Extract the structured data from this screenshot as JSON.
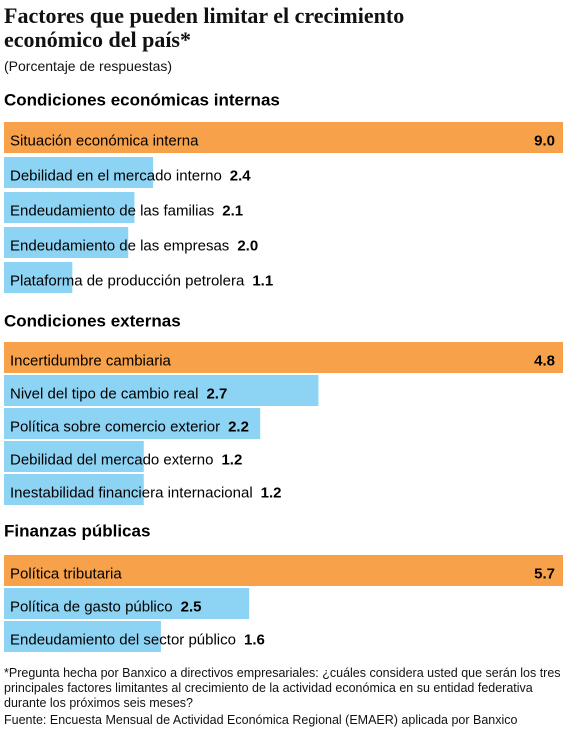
{
  "chart_data": {
    "type": "bar",
    "title": "Factores que pueden limitar el crecimiento económico del país*",
    "subtitle": "(Porcentaje de respuestas)",
    "groups": [
      {
        "name": "Condiciones económicas internas",
        "categories": [
          "Situación económica interna",
          "Debilidad en el mercado interno",
          "Endeudamiento de las familias",
          "Endeudamiento de las empresas",
          "Plataforma de producción petrolera"
        ],
        "values": [
          9.0,
          2.4,
          2.1,
          2.0,
          1.1
        ],
        "value_labels": [
          "9.0",
          "2.4",
          "2.1",
          "2.0",
          "1.1"
        ],
        "colors": [
          "#f7a14a",
          "#8dd3f3",
          "#8dd3f3",
          "#8dd3f3",
          "#8dd3f3"
        ]
      },
      {
        "name": "Condiciones externas",
        "categories": [
          "Incertidumbre cambiaria",
          "Nivel del tipo de cambio real",
          "Política sobre comercio exterior",
          "Debilidad del mercado externo",
          "Inestabilidad financiera internacional"
        ],
        "values": [
          4.8,
          2.7,
          2.2,
          1.2,
          1.2
        ],
        "value_labels": [
          "4.8",
          "2.7",
          "2.2",
          "1.2",
          "1.2"
        ],
        "colors": [
          "#f7a14a",
          "#8dd3f3",
          "#8dd3f3",
          "#8dd3f3",
          "#8dd3f3"
        ]
      },
      {
        "name": "Finanzas públicas",
        "categories": [
          "Política tributaria",
          "Política de gasto público",
          "Endeudamiento del sector público"
        ],
        "values": [
          5.7,
          2.5,
          1.6
        ],
        "value_labels": [
          "5.7",
          "2.5",
          "1.6"
        ],
        "colors": [
          "#f7a14a",
          "#8dd3f3",
          "#8dd3f3"
        ]
      }
    ],
    "footnote": "*Pregunta hecha por Banxico a directivos empresariales: ¿cuáles considera usted que serán los tres principales factores limitantes al crecimiento de la actividad económica en su entidad federativa durante los próximos seis meses?",
    "source": "Fuente: Encuesta Mensual de Actividad Económica Regional (EMAER) aplicada por Banxico"
  }
}
